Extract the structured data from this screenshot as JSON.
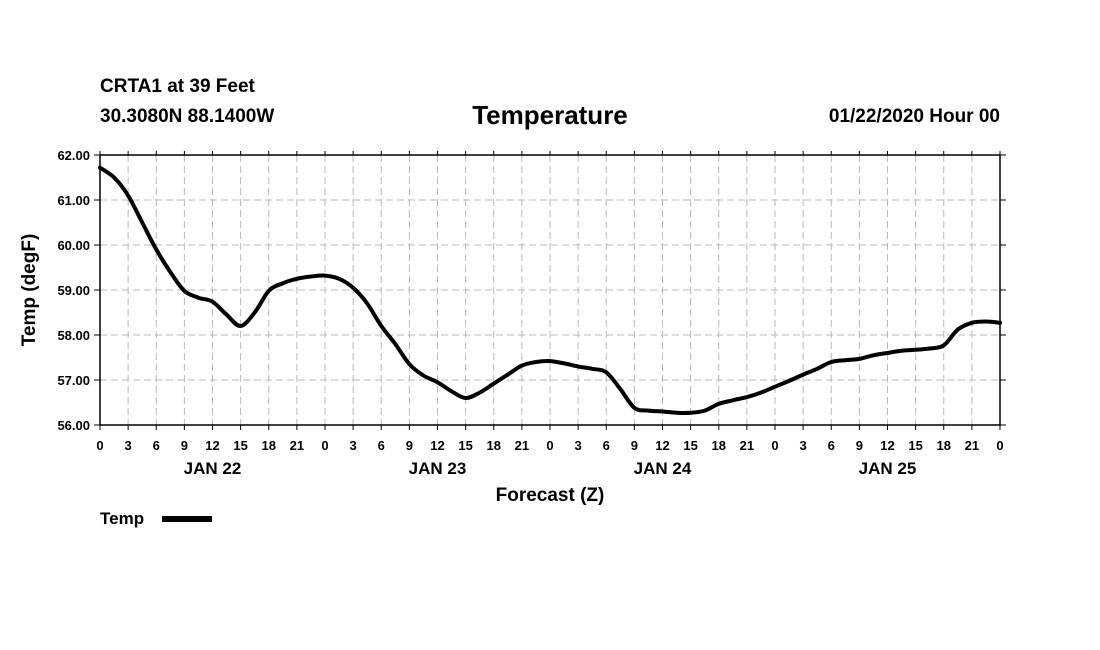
{
  "header": {
    "station": "CRTA1 at 39 Feet",
    "coords": "30.3080N 88.1400W",
    "title": "Temperature",
    "run": "01/22/2020 Hour 00"
  },
  "legend": {
    "label": "Temp"
  },
  "chart_data": {
    "type": "line",
    "title": "Temperature",
    "xlabel": "Forecast (Z)",
    "ylabel": "Temp (degF)",
    "ylim": [
      56.0,
      62.0
    ],
    "xlim": [
      0,
      96
    ],
    "grid": true,
    "y_ticks": [
      "56.00",
      "57.00",
      "58.00",
      "59.00",
      "60.00",
      "61.00",
      "62.00"
    ],
    "x_ticks": [
      "0",
      "3",
      "6",
      "9",
      "12",
      "15",
      "18",
      "21",
      "0",
      "3",
      "6",
      "9",
      "12",
      "15",
      "18",
      "21",
      "0",
      "3",
      "6",
      "9",
      "12",
      "15",
      "18",
      "21",
      "0",
      "3",
      "6",
      "9",
      "12",
      "15",
      "18",
      "21",
      "0"
    ],
    "day_labels": [
      {
        "label": "JAN 22",
        "hour": 12
      },
      {
        "label": "JAN 23",
        "hour": 36
      },
      {
        "label": "JAN 24",
        "hour": 60
      },
      {
        "label": "JAN 25",
        "hour": 84
      }
    ],
    "series": [
      {
        "name": "Temp",
        "x": [
          0,
          1.5,
          3,
          4.5,
          6,
          7.5,
          9,
          10.5,
          12,
          13.5,
          15,
          16.5,
          18,
          19.5,
          21,
          22.5,
          24,
          25.5,
          27,
          28.5,
          30,
          31.5,
          33,
          34.5,
          36,
          37.5,
          39,
          40.5,
          42,
          43.5,
          45,
          46.5,
          48,
          49.5,
          51,
          52.5,
          54,
          55.5,
          57,
          58.5,
          60,
          61.5,
          63,
          64.5,
          66,
          67.5,
          69,
          70.5,
          72,
          73.5,
          75,
          76.5,
          78,
          79.5,
          81,
          82.5,
          84,
          85.5,
          87,
          88.5,
          90,
          91.5,
          93,
          94.5,
          96
        ],
        "values": [
          61.72,
          61.5,
          61.1,
          60.5,
          59.9,
          59.4,
          58.98,
          58.83,
          58.74,
          58.45,
          58.2,
          58.5,
          58.98,
          59.15,
          59.25,
          59.3,
          59.32,
          59.25,
          59.05,
          58.7,
          58.2,
          57.8,
          57.35,
          57.1,
          56.95,
          56.75,
          56.6,
          56.72,
          56.92,
          57.12,
          57.32,
          57.4,
          57.42,
          57.37,
          57.3,
          57.25,
          57.17,
          56.8,
          56.38,
          56.32,
          56.3,
          56.27,
          56.27,
          56.32,
          56.47,
          56.55,
          56.62,
          56.72,
          56.85,
          56.98,
          57.12,
          57.25,
          57.4,
          57.44,
          57.47,
          57.55,
          57.6,
          57.65,
          57.67,
          57.7,
          57.77,
          58.12,
          58.27,
          58.3,
          58.27
        ]
      }
    ]
  }
}
